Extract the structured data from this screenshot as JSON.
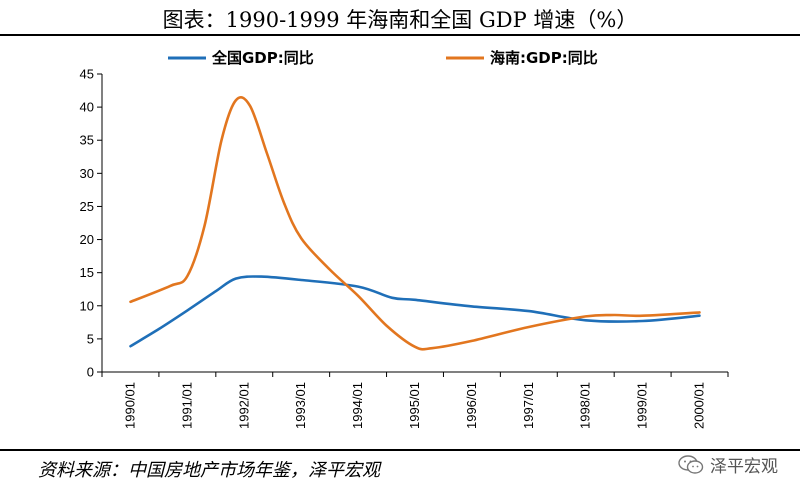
{
  "title": "图表：1990-1999 年海南和全国 GDP 增速（%）",
  "source": "资料来源：中国房地产市场年鉴，泽平宏观",
  "watermark": "泽平宏观",
  "colors": {
    "national": "#1f6fb8",
    "hainan": "#e2761f"
  },
  "chart_data": {
    "type": "line",
    "title": "图表：1990-1999 年海南和全国 GDP 增速（%）",
    "xlabel": "",
    "ylabel": "",
    "ylim": [
      0,
      45
    ],
    "yticks": [
      "0",
      "5",
      "10",
      "15",
      "20",
      "25",
      "30",
      "35",
      "40",
      "45"
    ],
    "categories": [
      "1990/01",
      "1991/01",
      "1992/01",
      "1993/01",
      "1994/01",
      "1995/01",
      "1996/01",
      "1997/01",
      "1998/01",
      "1999/01",
      "2000/01"
    ],
    "legend_position": "top",
    "grid": false,
    "series": [
      {
        "name": "全国GDP:同比",
        "color": "#1f6fb8",
        "points": [
          [
            0,
            3.9
          ],
          [
            0.5,
            6.5
          ],
          [
            1,
            9.3
          ],
          [
            1.5,
            12.2
          ],
          [
            1.85,
            14.1
          ],
          [
            2.3,
            14.4
          ],
          [
            3,
            13.9
          ],
          [
            4,
            12.9
          ],
          [
            4.6,
            11.2
          ],
          [
            5,
            10.9
          ],
          [
            6,
            9.9
          ],
          [
            7,
            9.2
          ],
          [
            8,
            7.8
          ],
          [
            9,
            7.7
          ],
          [
            10,
            8.5
          ]
        ]
      },
      {
        "name": "海南:GDP:同比",
        "color": "#e2761f",
        "points": [
          [
            0,
            10.6
          ],
          [
            0.7,
            13.0
          ],
          [
            1,
            14.5
          ],
          [
            1.3,
            22
          ],
          [
            1.6,
            35
          ],
          [
            1.85,
            41.0
          ],
          [
            2.1,
            40.2
          ],
          [
            2.4,
            33
          ],
          [
            2.7,
            25.5
          ],
          [
            3,
            20.2
          ],
          [
            3.5,
            15.5
          ],
          [
            4,
            11.5
          ],
          [
            4.5,
            7.0
          ],
          [
            5,
            3.8
          ],
          [
            5.3,
            3.6
          ],
          [
            6,
            4.7
          ],
          [
            7,
            6.8
          ],
          [
            8,
            8.4
          ],
          [
            8.5,
            8.6
          ],
          [
            9,
            8.5
          ],
          [
            10,
            9.0
          ]
        ]
      }
    ]
  }
}
